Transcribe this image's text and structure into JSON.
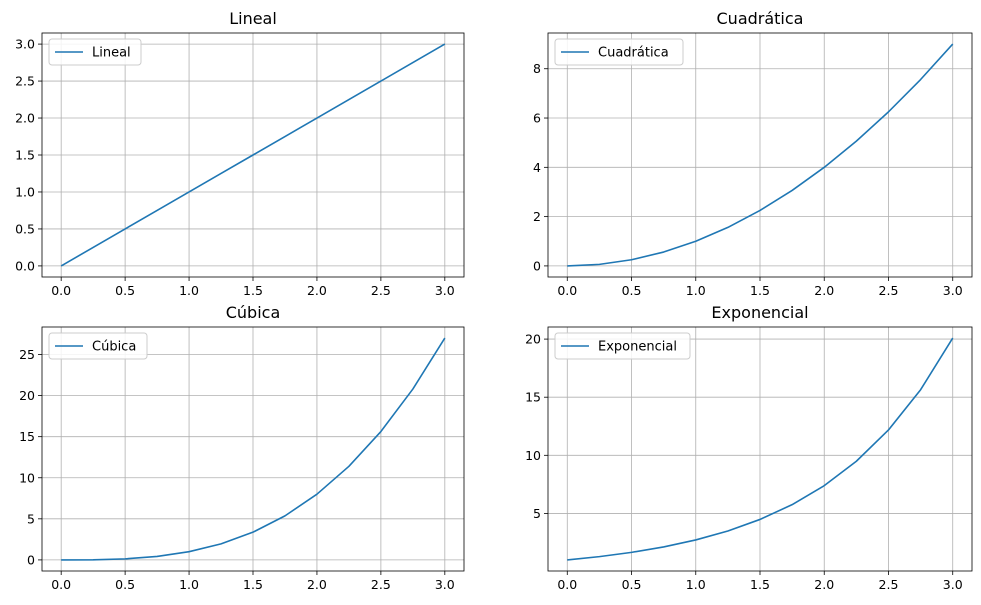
{
  "chart_data": [
    {
      "type": "line",
      "title": "Lineal",
      "xlabel": "",
      "ylabel": "",
      "xlim": [
        -0.15,
        3.15
      ],
      "ylim": [
        -0.15,
        3.15
      ],
      "x_ticks": [
        0.0,
        0.5,
        1.0,
        1.5,
        2.0,
        2.5,
        3.0
      ],
      "x_tick_labels": [
        "0.0",
        "0.5",
        "1.0",
        "1.5",
        "2.0",
        "2.5",
        "3.0"
      ],
      "y_ticks": [
        0.0,
        0.5,
        1.0,
        1.5,
        2.0,
        2.5,
        3.0
      ],
      "y_tick_labels": [
        "0.0",
        "0.5",
        "1.0",
        "1.5",
        "2.0",
        "2.5",
        "3.0"
      ],
      "grid": true,
      "legend_position": "top-left",
      "series": [
        {
          "name": "Lineal",
          "color": "#1f77b4",
          "x": [
            0.0,
            0.25,
            0.5,
            0.75,
            1.0,
            1.25,
            1.5,
            1.75,
            2.0,
            2.25,
            2.5,
            2.75,
            3.0
          ],
          "y": [
            0.0,
            0.25,
            0.5,
            0.75,
            1.0,
            1.25,
            1.5,
            1.75,
            2.0,
            2.25,
            2.5,
            2.75,
            3.0
          ]
        }
      ]
    },
    {
      "type": "line",
      "title": "Cuadrática",
      "xlabel": "",
      "ylabel": "",
      "xlim": [
        -0.15,
        3.15
      ],
      "ylim": [
        -0.45,
        9.45
      ],
      "x_ticks": [
        0.0,
        0.5,
        1.0,
        1.5,
        2.0,
        2.5,
        3.0
      ],
      "x_tick_labels": [
        "0.0",
        "0.5",
        "1.0",
        "1.5",
        "2.0",
        "2.5",
        "3.0"
      ],
      "y_ticks": [
        0,
        2,
        4,
        6,
        8
      ],
      "y_tick_labels": [
        "0",
        "2",
        "4",
        "6",
        "8"
      ],
      "grid": true,
      "legend_position": "top-left",
      "series": [
        {
          "name": "Cuadrática",
          "color": "#1f77b4",
          "x": [
            0.0,
            0.25,
            0.5,
            0.75,
            1.0,
            1.25,
            1.5,
            1.75,
            2.0,
            2.25,
            2.5,
            2.75,
            3.0
          ],
          "y": [
            0.0,
            0.0625,
            0.25,
            0.5625,
            1.0,
            1.5625,
            2.25,
            3.0625,
            4.0,
            5.0625,
            6.25,
            7.5625,
            9.0
          ]
        }
      ]
    },
    {
      "type": "line",
      "title": "Cúbica",
      "xlabel": "",
      "ylabel": "",
      "xlim": [
        -0.15,
        3.15
      ],
      "ylim": [
        -1.35,
        28.35
      ],
      "x_ticks": [
        0.0,
        0.5,
        1.0,
        1.5,
        2.0,
        2.5,
        3.0
      ],
      "x_tick_labels": [
        "0.0",
        "0.5",
        "1.0",
        "1.5",
        "2.0",
        "2.5",
        "3.0"
      ],
      "y_ticks": [
        0,
        5,
        10,
        15,
        20,
        25
      ],
      "y_tick_labels": [
        "0",
        "5",
        "10",
        "15",
        "20",
        "25"
      ],
      "grid": true,
      "legend_position": "top-left",
      "series": [
        {
          "name": "Cúbica",
          "color": "#1f77b4",
          "x": [
            0.0,
            0.25,
            0.5,
            0.75,
            1.0,
            1.25,
            1.5,
            1.75,
            2.0,
            2.25,
            2.5,
            2.75,
            3.0
          ],
          "y": [
            0.0,
            0.0156,
            0.125,
            0.4219,
            1.0,
            1.9531,
            3.375,
            5.3594,
            8.0,
            11.3906,
            15.625,
            20.7969,
            27.0
          ]
        }
      ]
    },
    {
      "type": "line",
      "title": "Exponencial",
      "xlabel": "",
      "ylabel": "",
      "xlim": [
        -0.15,
        3.15
      ],
      "ylim": [
        0.0457,
        21.04
      ],
      "x_ticks": [
        0.0,
        0.5,
        1.0,
        1.5,
        2.0,
        2.5,
        3.0
      ],
      "x_tick_labels": [
        "0.0",
        "0.5",
        "1.0",
        "1.5",
        "2.0",
        "2.5",
        "3.0"
      ],
      "y_ticks": [
        5,
        10,
        15,
        20
      ],
      "y_tick_labels": [
        "5",
        "10",
        "15",
        "20"
      ],
      "grid": true,
      "legend_position": "top-left",
      "series": [
        {
          "name": "Exponencial",
          "color": "#1f77b4",
          "x": [
            0.0,
            0.25,
            0.5,
            0.75,
            1.0,
            1.25,
            1.5,
            1.75,
            2.0,
            2.25,
            2.5,
            2.75,
            3.0
          ],
          "y": [
            1.0,
            1.284,
            1.6487,
            2.117,
            2.7183,
            3.4903,
            4.4817,
            5.7546,
            7.3891,
            9.4877,
            12.1825,
            15.6426,
            20.0855
          ]
        }
      ]
    }
  ]
}
